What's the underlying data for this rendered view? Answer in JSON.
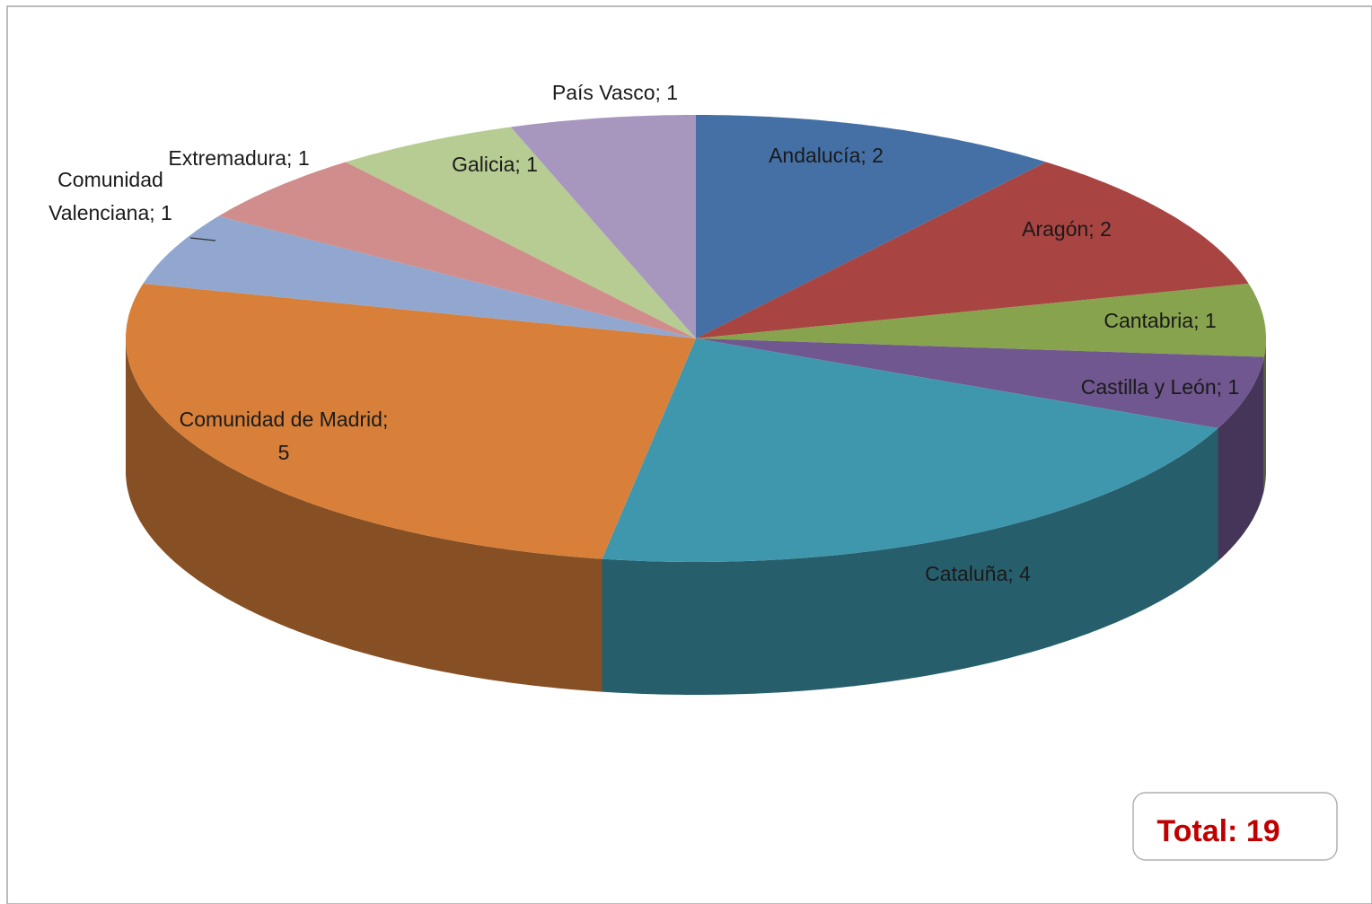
{
  "chart_data": {
    "type": "pie",
    "categories": [
      "Andalucía",
      "Aragón",
      "Cantabria",
      "Castilla y León",
      "Cataluña",
      "Comunidad de Madrid",
      "Comunidad Valenciana",
      "Extremadura",
      "Galicia",
      "País Vasco"
    ],
    "values": [
      2,
      2,
      1,
      1,
      4,
      5,
      1,
      1,
      1,
      1
    ],
    "value_labels": [
      "Andalucía; 2",
      "Aragón; 2",
      "Cantabria; 1",
      "Castilla y León; 1",
      "Cataluña; 4",
      "Comunidad de Madrid;\n5",
      "Comunidad\nValenciana; 1",
      "Extremadura; 1",
      "Galicia; 1",
      "País Vasco; 1"
    ],
    "colors": [
      "#4470a6",
      "#a84442",
      "#87a34d",
      "#70578f",
      "#3f97ae",
      "#d8803a",
      "#91a7cf",
      "#d08d8b",
      "#b7cc93",
      "#a797bf"
    ],
    "annotation": "Total: 19"
  }
}
